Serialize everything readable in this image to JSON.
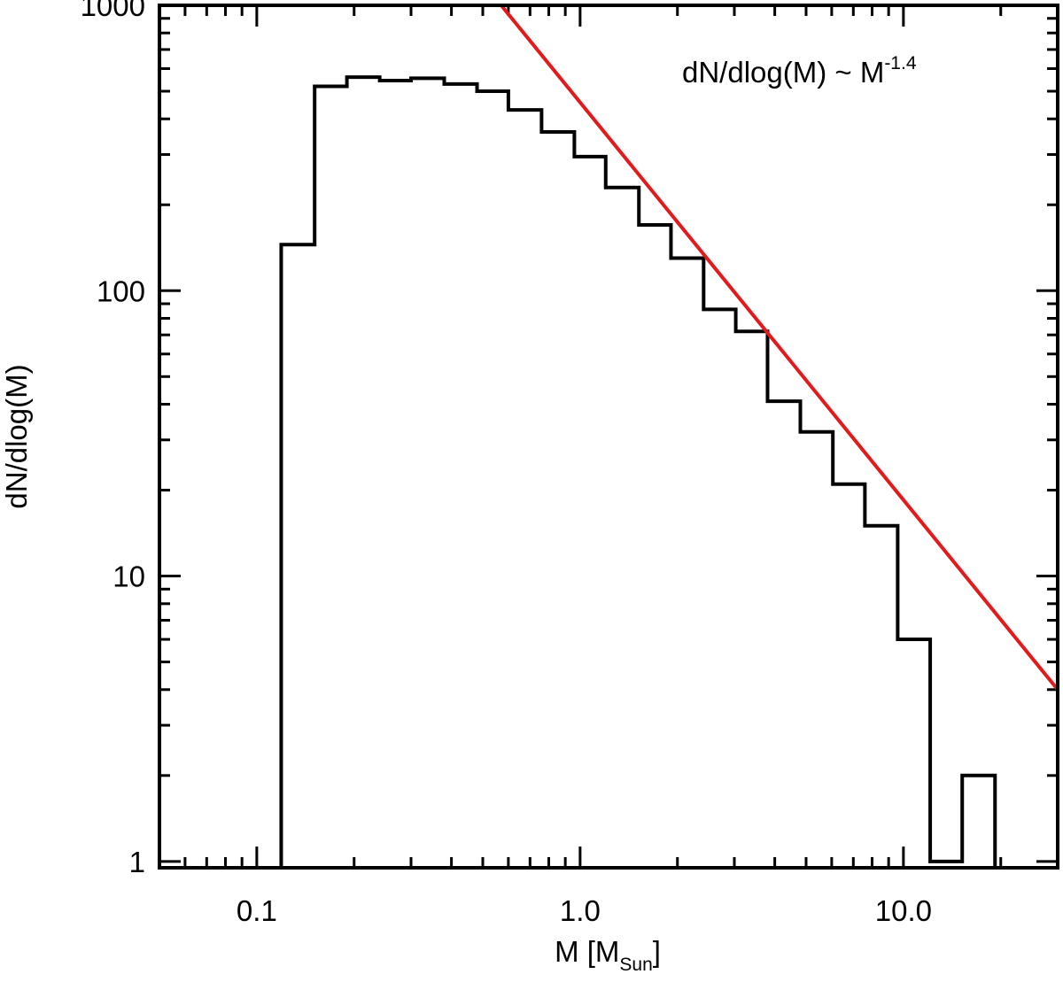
{
  "chart_data": {
    "type": "line",
    "xscale": "log",
    "yscale": "log",
    "xlim": [
      0.05,
      30
    ],
    "ylim": [
      0.95,
      1000
    ],
    "xlabel": {
      "main": "M [M",
      "sub": "Sun",
      "close": "]"
    },
    "ylabel": "dN/dlog(M)",
    "x_ticks": [
      {
        "value": 0.1,
        "label": "0.1"
      },
      {
        "value": 1.0,
        "label": "1.0"
      },
      {
        "value": 10.0,
        "label": "10.0"
      }
    ],
    "y_ticks": [
      {
        "value": 1,
        "label": "1"
      },
      {
        "value": 10,
        "label": "10"
      },
      {
        "value": 100,
        "label": "100"
      },
      {
        "value": 1000,
        "label": "1000"
      }
    ],
    "annotation": {
      "text": "dN/dlog(M) ~ M",
      "exponent": "-1.4"
    },
    "histogram": {
      "bin_edges": [
        0.119,
        0.151,
        0.19,
        0.24,
        0.3,
        0.38,
        0.48,
        0.6,
        0.76,
        0.96,
        1.2,
        1.52,
        1.91,
        2.41,
        3.03,
        3.8,
        4.8,
        6.05,
        7.6,
        9.6,
        12.1,
        15.2,
        19.2,
        24.1,
        30.3
      ],
      "counts": [
        145,
        520,
        560,
        545,
        555,
        530,
        500,
        430,
        360,
        295,
        230,
        170,
        130,
        86,
        72,
        41,
        32,
        21,
        15,
        6,
        1,
        2,
        0.95,
        0.95
      ],
      "color": "#000000"
    },
    "series": [
      {
        "values": [
          [
            0.57,
            1000
          ],
          [
            30,
            4.0
          ]
        ],
        "color": "#e31a1c"
      }
    ]
  }
}
